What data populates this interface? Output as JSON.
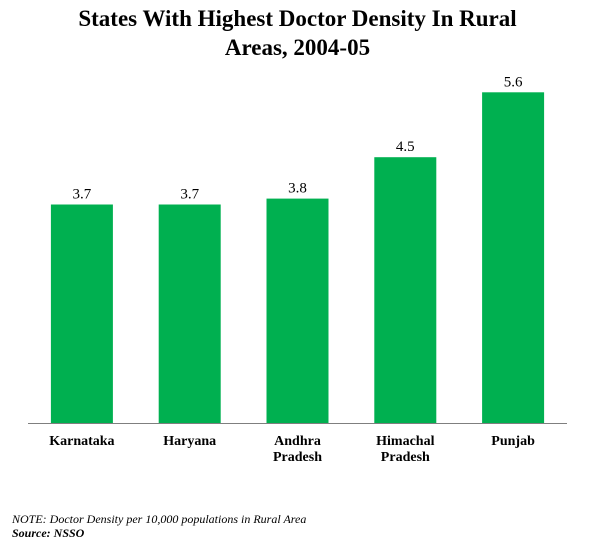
{
  "chart_data": {
    "type": "bar",
    "title_lines": [
      "States With Highest Doctor Density In Rural",
      "Areas, 2004-05"
    ],
    "categories": [
      [
        "Karnataka"
      ],
      [
        "Haryana"
      ],
      [
        "Andhra",
        "Pradesh"
      ],
      [
        "Himachal",
        "Pradesh"
      ],
      [
        "Punjab"
      ]
    ],
    "values": [
      3.7,
      3.7,
      3.8,
      4.5,
      5.6
    ],
    "value_labels": [
      "3.7",
      "3.7",
      "3.8",
      "4.5",
      "5.6"
    ],
    "xlabel": "",
    "ylabel": "",
    "ylim": [
      0,
      6.4
    ],
    "grid": false,
    "legend": "none",
    "bar_color": "#00b050"
  },
  "footer": {
    "note": "NOTE: Doctor Density per 10,000 populations in Rural Area",
    "source": "Source: NSSO"
  }
}
